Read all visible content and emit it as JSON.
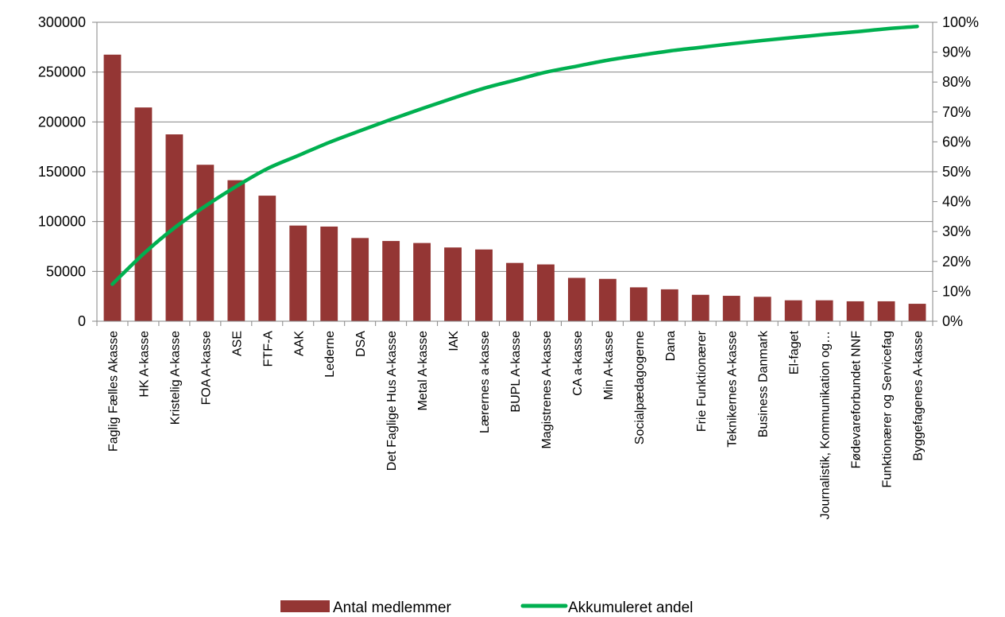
{
  "chart_data": {
    "type": "bar",
    "categories": [
      "Faglig Fælles Akasse",
      "HK A-kasse",
      "Kristelig A-kasse",
      "FOA A-kasse",
      "ASE",
      "FTF-A",
      "AAK",
      "Lederne",
      "DSA",
      "Det Faglige Hus A-kasse",
      "Metal A-kasse",
      "IAK",
      "Lærernes a-kasse",
      "BUPL A-kasse",
      "Magistrenes A-kasse",
      "CA a-kasse",
      "Min A-kasse",
      "Socialpædagogerne",
      "Dana",
      "Frie Funktionærer",
      "Teknikernes A-kasse",
      "Business Danmark",
      "El-faget",
      "Journalistik, Kommunikation og…",
      "Fødevareforbundet NNF",
      "Funktionærer og Servicefag",
      "Byggefagenes A-kasse"
    ],
    "series": [
      {
        "name": "Antal medlemmer",
        "type": "bar",
        "axis": "left",
        "color": "#943634",
        "values": [
          267500,
          214500,
          187500,
          157000,
          141500,
          126000,
          96000,
          95000,
          83500,
          80500,
          78500,
          74000,
          72000,
          58500,
          57000,
          43500,
          42500,
          34000,
          32000,
          26500,
          25500,
          24500,
          21000,
          21000,
          20000,
          20000,
          17500
        ]
      },
      {
        "name": "Akkumuleret andel",
        "type": "line",
        "axis": "right",
        "color": "#00B050",
        "values": [
          0.124,
          0.225,
          0.312,
          0.385,
          0.451,
          0.51,
          0.554,
          0.598,
          0.637,
          0.675,
          0.711,
          0.746,
          0.779,
          0.806,
          0.833,
          0.853,
          0.873,
          0.889,
          0.904,
          0.916,
          0.928,
          0.939,
          0.949,
          0.959,
          0.968,
          0.978,
          0.986
        ]
      }
    ],
    "y_left": {
      "min": 0,
      "max": 300000,
      "ticks": [
        0,
        50000,
        100000,
        150000,
        200000,
        250000,
        300000
      ],
      "tick_labels": [
        "0",
        "50000",
        "100000",
        "150000",
        "200000",
        "250000",
        "300000"
      ]
    },
    "y_right": {
      "min": 0,
      "max": 1,
      "ticks": [
        0,
        0.1,
        0.2,
        0.3,
        0.4,
        0.5,
        0.6,
        0.7,
        0.8,
        0.9,
        1.0
      ],
      "tick_labels": [
        "0%",
        "10%",
        "20%",
        "30%",
        "40%",
        "50%",
        "60%",
        "70%",
        "80%",
        "90%",
        "100%"
      ]
    },
    "grid": true,
    "legend_position": "bottom",
    "legend": [
      {
        "label": "Antal medlemmer",
        "marker": "bar"
      },
      {
        "label": "Akkumuleret andel",
        "marker": "line"
      }
    ],
    "colors": {
      "bar": "#943634",
      "line": "#00B050",
      "grid": "#868686",
      "axis": "#868686"
    }
  }
}
